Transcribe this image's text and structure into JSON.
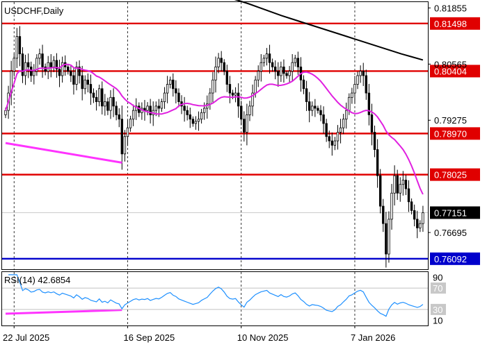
{
  "chart_data": {
    "type": "candlestick",
    "title": "USDCHF,Daily",
    "price_axis": {
      "ylim": [
        0.7585,
        0.8199
      ],
      "tick_labels": [
        "0.81855",
        "0.80565",
        "0.79275",
        "0.76695"
      ],
      "tick_values": [
        0.81855,
        0.80565,
        0.79275,
        0.76695
      ]
    },
    "levels": [
      {
        "label": "0.81498",
        "value": 0.81498,
        "color": "#e00000"
      },
      {
        "label": "0.80404",
        "value": 0.80404,
        "color": "#e00000"
      },
      {
        "label": "0.78970",
        "value": 0.7897,
        "color": "#e00000"
      },
      {
        "label": "0.78025",
        "value": 0.78025,
        "color": "#e00000"
      },
      {
        "label": "0.76092",
        "value": 0.76092,
        "color": "#0000cc"
      }
    ],
    "current_price": {
      "label": "0.77151",
      "value": 0.77151
    },
    "date_axis": {
      "labels": [
        "22 Jul 2025",
        "16 Sep 2025",
        "10 Nov 2025",
        "7 Jan 2026"
      ],
      "label_index": [
        3,
        43,
        83,
        123
      ]
    },
    "bar_count": 148,
    "closes": [
      0.795,
      0.799,
      0.804,
      0.807,
      0.812,
      0.808,
      0.803,
      0.806,
      0.805,
      0.803,
      0.804,
      0.807,
      0.808,
      0.805,
      0.804,
      0.806,
      0.805,
      0.8065,
      0.8045,
      0.803,
      0.806,
      0.805,
      0.804,
      0.803,
      0.801,
      0.805,
      0.803,
      0.8,
      0.802,
      0.801,
      0.799,
      0.798,
      0.797,
      0.8,
      0.796,
      0.797,
      0.795,
      0.798,
      0.796,
      0.794,
      0.793,
      0.785,
      0.789,
      0.791,
      0.793,
      0.795,
      0.796,
      0.7945,
      0.7955,
      0.795,
      0.796,
      0.794,
      0.795,
      0.796,
      0.7955,
      0.797,
      0.799,
      0.801,
      0.802,
      0.8,
      0.799,
      0.797,
      0.796,
      0.795,
      0.794,
      0.793,
      0.792,
      0.7925,
      0.793,
      0.7945,
      0.7955,
      0.7965,
      0.799,
      0.802,
      0.805,
      0.807,
      0.806,
      0.804,
      0.801,
      0.799,
      0.7985,
      0.799,
      0.796,
      0.793,
      0.79,
      0.794,
      0.796,
      0.799,
      0.802,
      0.804,
      0.806,
      0.807,
      0.808,
      0.806,
      0.805,
      0.804,
      0.803,
      0.805,
      0.8035,
      0.803,
      0.804,
      0.806,
      0.807,
      0.805,
      0.802,
      0.8,
      0.797,
      0.795,
      0.796,
      0.7955,
      0.795,
      0.794,
      0.792,
      0.789,
      0.788,
      0.787,
      0.788,
      0.79,
      0.791,
      0.793,
      0.795,
      0.798,
      0.799,
      0.801,
      0.803,
      0.804,
      0.803,
      0.799,
      0.794,
      0.79,
      0.786,
      0.78,
      0.773,
      0.769,
      0.762,
      0.77,
      0.776,
      0.78,
      0.776,
      0.778,
      0.779,
      0.777,
      0.774,
      0.772,
      0.77,
      0.768,
      0.769,
      0.7715
    ],
    "ma_fast": {
      "color": "#e020e0",
      "period": 20
    },
    "ma_slow": {
      "color": "#000000",
      "start_index": 78,
      "values": [
        0.821,
        0.8203,
        0.8195,
        0.8186,
        0.8177,
        0.8168,
        0.816,
        0.8152,
        0.8144,
        0.8136,
        0.8128,
        0.812,
        0.8112,
        0.8104,
        0.8096,
        0.8088,
        0.808,
        0.8073,
        0.8066
      ]
    },
    "rsi": {
      "label": "RSI(14) 42.6854",
      "period": 14,
      "ylim": [
        0,
        100
      ],
      "levels": [
        70,
        30
      ],
      "tick_labels": [
        "90",
        "70",
        "30",
        "10"
      ],
      "tick_values": [
        90,
        70,
        30,
        10
      ],
      "color": "#1e90ff"
    },
    "trend_lines": [
      {
        "panel": "price",
        "from": {
          "bar": 0,
          "price": 0.7875
        },
        "to": {
          "bar": 41,
          "price": 0.783
        },
        "color": "#ff33ff"
      },
      {
        "panel": "rsi",
        "from": {
          "bar": 0,
          "rsi": 22
        },
        "to": {
          "bar": 41,
          "rsi": 29
        },
        "color": "#ff33ff"
      }
    ],
    "grid": "vertical-dashed",
    "colors": {
      "candle": "#000000",
      "level_red": "#e00000",
      "level_blue": "#0000cc",
      "last_price_bg": "#000000"
    }
  }
}
